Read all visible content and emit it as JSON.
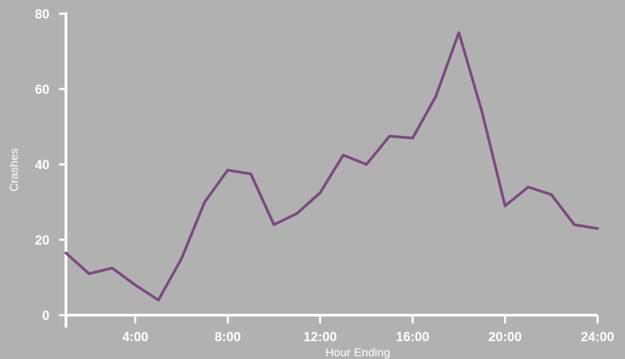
{
  "chart_data": {
    "type": "line",
    "title": "",
    "xlabel": "Hour Ending",
    "ylabel": "Crashes",
    "x": [
      1,
      2,
      3,
      4,
      5,
      6,
      7,
      8,
      9,
      10,
      11,
      12,
      13,
      14,
      15,
      16,
      17,
      18,
      19,
      20,
      21,
      22,
      23,
      24
    ],
    "x_tick_values": [
      4,
      8,
      12,
      16,
      20,
      24
    ],
    "x_tick_labels": [
      "4:00",
      "8:00",
      "12:00",
      "16:00",
      "20:00",
      "24:00"
    ],
    "y_ticks": [
      0,
      20,
      40,
      60,
      80
    ],
    "xlim": [
      1,
      24
    ],
    "ylim": [
      0,
      80
    ],
    "grid": "horizontal dashed",
    "series": [
      {
        "values": [
          16.5,
          11,
          12.5,
          8,
          4,
          15,
          30,
          38.5,
          37.5,
          24,
          27,
          32.5,
          42.5,
          40,
          47.5,
          47,
          58,
          75,
          54,
          29,
          34,
          32,
          24,
          23
        ],
        "color": "#7b4a80"
      }
    ]
  }
}
